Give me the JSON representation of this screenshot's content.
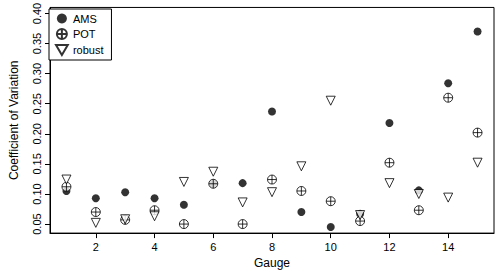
{
  "chart_data": {
    "type": "scatter",
    "x_label": "Gauge",
    "y_label": "Coefficient of Variation",
    "x": [
      1,
      2,
      3,
      4,
      5,
      6,
      7,
      8,
      9,
      10,
      11,
      12,
      13,
      14,
      15
    ],
    "series": [
      {
        "name": "AMS",
        "color": "#000000",
        "marker": "filled_circle",
        "values": [
          0.105,
          0.093,
          0.103,
          0.093,
          0.082,
          0.117,
          0.118,
          0.237,
          0.07,
          0.045,
          0.067,
          0.218,
          0.106,
          0.284,
          0.37
        ]
      },
      {
        "name": "POT",
        "color": "#000000",
        "marker": "circle_plus",
        "values": [
          0.112,
          0.07,
          0.057,
          0.073,
          0.05,
          0.117,
          0.05,
          0.124,
          0.105,
          0.088,
          0.055,
          0.152,
          0.073,
          0.26,
          0.202
        ]
      },
      {
        "name": "robust",
        "color": "#000000",
        "marker": "triangle_down",
        "values": [
          0.124,
          0.052,
          0.058,
          0.063,
          0.12,
          0.137,
          0.086,
          0.103,
          0.146,
          0.255,
          0.065,
          0.118,
          0.1,
          0.094,
          0.152
        ]
      }
    ],
    "xlim": [
      0.44,
      15.56
    ],
    "xticks": [
      2,
      4,
      6,
      8,
      10,
      12,
      14
    ],
    "ylim": [
      0.035,
      0.41
    ],
    "yticks": [
      0.05,
      {
        "value": 0.1,
        "label": "0.10"
      },
      0.15,
      {
        "value": 0.2,
        "label": "0.20"
      },
      0.25,
      {
        "value": 0.3,
        "label": "0.30"
      },
      0.35,
      {
        "value": 0.4,
        "label": "0.40"
      }
    ],
    "legend": "top-left",
    "grid": false
  }
}
